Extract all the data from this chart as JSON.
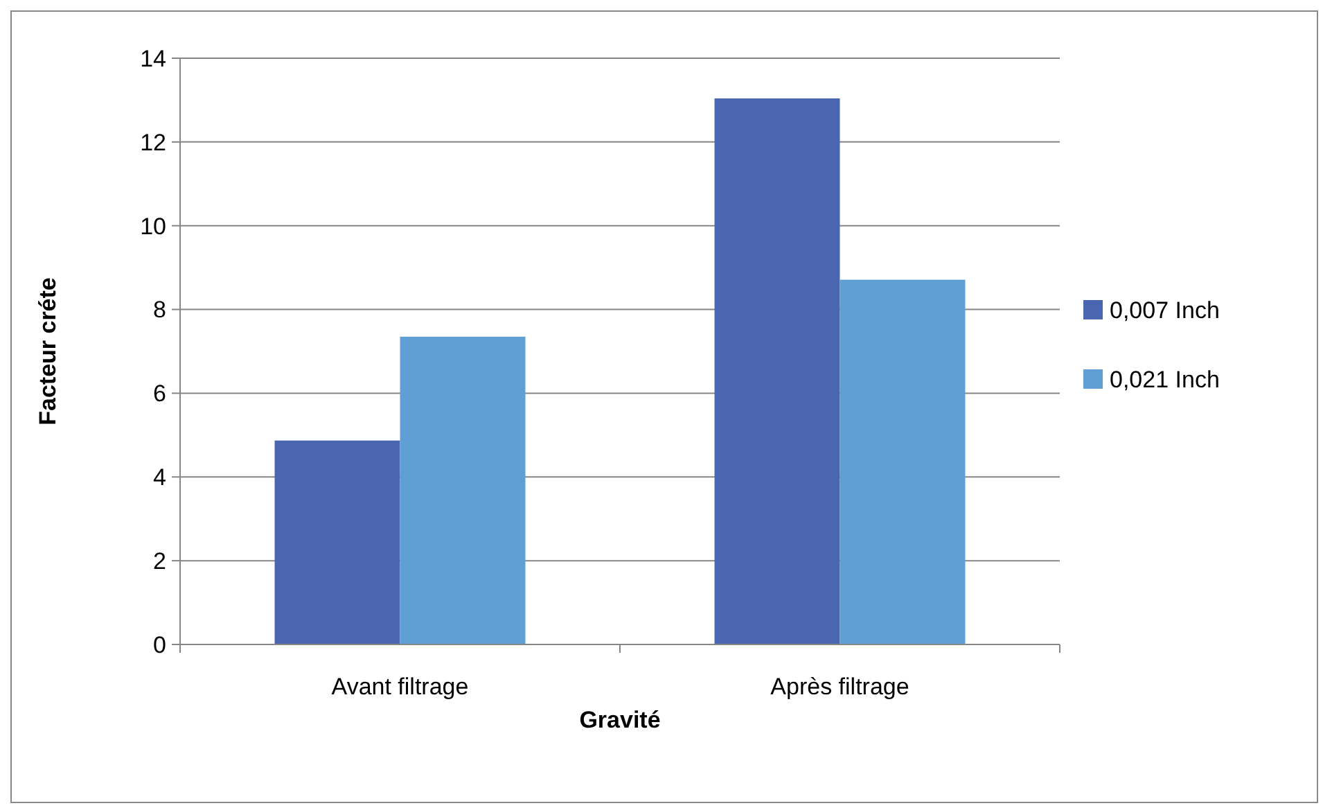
{
  "chart_data": {
    "type": "bar",
    "xlabel": "Gravité",
    "ylabel": "Facteur créte",
    "categories": [
      "Avant filtrage",
      "Après filtrage"
    ],
    "series": [
      {
        "name": "0,007 Inch",
        "color": "#4a66b0",
        "values": [
          4.87,
          13.04
        ]
      },
      {
        "name": "0,021 Inch",
        "color": "#5f9fd4",
        "values": [
          7.35,
          8.71
        ]
      }
    ],
    "ylim": [
      0,
      14
    ],
    "yticks": [
      0,
      2,
      4,
      6,
      8,
      10,
      12,
      14
    ],
    "grid": "y",
    "legend": "right"
  }
}
